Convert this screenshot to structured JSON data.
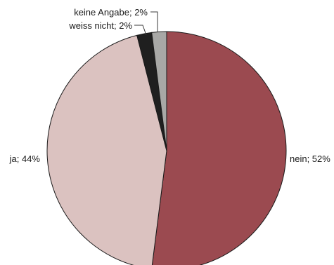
{
  "chart_data": {
    "type": "pie",
    "title": "",
    "series": [
      {
        "label": "nein; 52%",
        "value": 52,
        "color": "#9b4a50"
      },
      {
        "label": "ja; 44%",
        "value": 44,
        "color": "#dbc2c0"
      },
      {
        "label": "weiss nicht; 2%",
        "value": 2,
        "color": "#1f1f1f"
      },
      {
        "label": "keine Angabe; 2%",
        "value": 2,
        "color": "#a8a8a6"
      }
    ],
    "start": "12 o'clock",
    "direction": "clockwise"
  }
}
